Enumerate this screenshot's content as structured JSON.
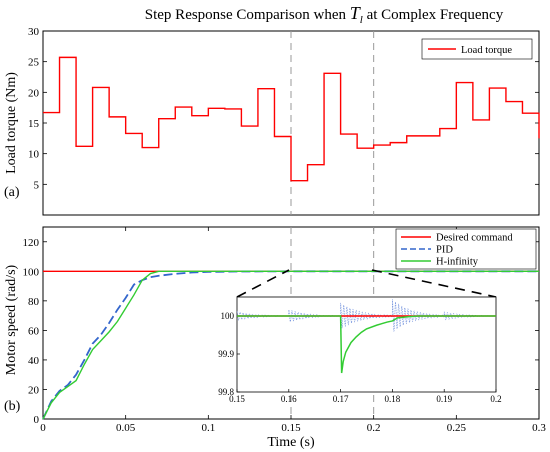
{
  "title": {
    "prefix": "Step Response Comparison when ",
    "symbol": "T",
    "subscript": "l",
    "suffix": " at Complex Frequency"
  },
  "chart_data": [
    {
      "type": "line",
      "panel_label": "(a)",
      "ylabel": "Load torque (Nm)",
      "xlim": [
        0,
        0.3
      ],
      "ylim": [
        0,
        30
      ],
      "yticks": [
        "5",
        "10",
        "15",
        "20",
        "25",
        "30"
      ],
      "series": [
        {
          "name": "Load torque",
          "color": "#ff0000",
          "step": true,
          "x": [
            0,
            0.01,
            0.02,
            0.03,
            0.04,
            0.05,
            0.06,
            0.07,
            0.08,
            0.09,
            0.1,
            0.11,
            0.12,
            0.13,
            0.14,
            0.15,
            0.16,
            0.17,
            0.18,
            0.19,
            0.2,
            0.21,
            0.22,
            0.23,
            0.24,
            0.25,
            0.26,
            0.27,
            0.28,
            0.29,
            0.3
          ],
          "y": [
            16.7,
            25.7,
            11.2,
            20.8,
            16.0,
            13.3,
            11.0,
            15.7,
            17.6,
            16.2,
            17.4,
            17.3,
            14.5,
            20.6,
            12.8,
            5.6,
            8.2,
            23.1,
            13.2,
            10.9,
            11.4,
            11.8,
            12.9,
            12.9,
            14.1,
            21.6,
            15.5,
            20.7,
            18.5,
            16.6,
            12.5
          ]
        }
      ],
      "vlines": [
        0.15,
        0.2
      ],
      "legend": "top-right"
    },
    {
      "type": "line",
      "panel_label": "(b)",
      "xlabel": "Time (s)",
      "ylabel": "Motor speed (rad/s)",
      "xlim": [
        0,
        0.3
      ],
      "ylim": [
        0,
        130
      ],
      "xticks": [
        "0",
        "0.05",
        "0.1",
        "0.15",
        "0.2",
        "0.25",
        "0.3"
      ],
      "yticks": [
        "0",
        "20",
        "40",
        "60",
        "80",
        "100",
        "120"
      ],
      "series": [
        {
          "name": "Desired command",
          "color": "#ff0000",
          "x": [
            0,
            0.3
          ],
          "y": [
            100,
            100
          ]
        },
        {
          "name": "PID",
          "color": "#3366cc",
          "dashed": true,
          "x": [
            0,
            0.005,
            0.01,
            0.015,
            0.02,
            0.025,
            0.03,
            0.035,
            0.04,
            0.045,
            0.05,
            0.055,
            0.06,
            0.065,
            0.07,
            0.08,
            0.09,
            0.1,
            0.12,
            0.15,
            0.2,
            0.25,
            0.3
          ],
          "y": [
            0,
            12,
            19,
            23,
            30,
            40,
            51,
            57,
            65,
            74,
            82,
            91,
            94,
            96,
            97,
            98.3,
            99.2,
            99.6,
            99.9,
            100,
            100,
            100,
            100
          ]
        },
        {
          "name": "H-infinity",
          "color": "#33cc33",
          "x": [
            0,
            0.005,
            0.01,
            0.015,
            0.02,
            0.025,
            0.03,
            0.035,
            0.04,
            0.045,
            0.05,
            0.055,
            0.06,
            0.065,
            0.07,
            0.08,
            0.1,
            0.15,
            0.2,
            0.25,
            0.3
          ],
          "y": [
            0,
            11,
            18,
            22,
            26,
            37,
            47,
            53,
            59,
            66,
            75,
            84,
            94,
            98.5,
            100,
            100,
            100,
            100,
            100,
            100,
            100
          ]
        }
      ],
      "vlines": [
        0.15,
        0.2
      ],
      "legend": "top-right"
    },
    {
      "type": "line",
      "panel_label": "inset",
      "xlim": [
        0.15,
        0.2
      ],
      "ylim": [
        99.8,
        100.05
      ],
      "xticks": [
        "0.15",
        "0.16",
        "0.17",
        "0.18",
        "0.19",
        "0.2"
      ],
      "yticks": [
        "99.8",
        "99.9",
        "100"
      ],
      "series": [
        {
          "name": "Desired command",
          "color": "#ff0000",
          "x": [
            0.15,
            0.2
          ],
          "y": [
            100,
            100
          ]
        },
        {
          "name": "H-infinity",
          "color": "#33cc33",
          "x": [
            0.15,
            0.16,
            0.17,
            0.1702,
            0.1705,
            0.171,
            0.172,
            0.173,
            0.174,
            0.175,
            0.177,
            0.179,
            0.18,
            0.181,
            0.183,
            0.185,
            0.19,
            0.2
          ],
          "y": [
            100.0,
            100.0,
            100.0,
            99.85,
            99.88,
            99.905,
            99.93,
            99.945,
            99.957,
            99.966,
            99.976,
            99.984,
            99.987,
            99.995,
            99.998,
            100.0,
            100.0,
            100.0
          ]
        }
      ],
      "pid_ripples": [
        {
          "t": 0.15,
          "a": 0.012
        },
        {
          "t": 0.16,
          "a": 0.017
        },
        {
          "t": 0.17,
          "a": 0.035
        },
        {
          "t": 0.18,
          "a": 0.045
        },
        {
          "t": 0.19,
          "a": 0.012
        }
      ]
    }
  ]
}
